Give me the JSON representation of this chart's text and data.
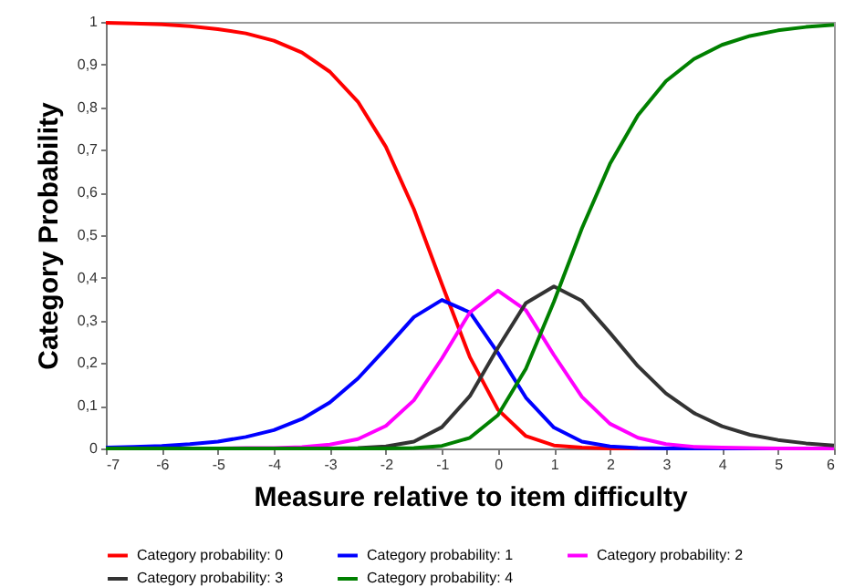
{
  "chart_data": {
    "type": "line",
    "xlabel": "Measure relative to item difficulty",
    "ylabel": "Category Probability",
    "x": [
      -7,
      -6.5,
      -6,
      -5.5,
      -5,
      -4.5,
      -4,
      -3.5,
      -3,
      -2.5,
      -2,
      -1.5,
      -1,
      -0.5,
      0,
      0.5,
      1,
      1.5,
      2,
      2.5,
      3,
      3.5,
      4,
      4.5,
      5,
      5.5,
      6
    ],
    "series": [
      {
        "name": "Category probability: 0",
        "color": "#ff0000",
        "values": [
          0.998,
          0.996,
          0.994,
          0.99,
          0.983,
          0.973,
          0.956,
          0.928,
          0.883,
          0.813,
          0.707,
          0.561,
          0.385,
          0.214,
          0.091,
          0.029,
          0.007,
          0.002,
          0,
          0,
          0,
          null,
          null,
          null,
          null,
          null,
          null
        ]
      },
      {
        "name": "Category probability: 1",
        "color": "#0000ff",
        "values": [
          0.002,
          0.004,
          0.006,
          0.01,
          0.016,
          0.027,
          0.043,
          0.069,
          0.108,
          0.164,
          0.235,
          0.308,
          0.348,
          0.319,
          0.224,
          0.119,
          0.049,
          0.016,
          0.005,
          0.001,
          0,
          0,
          0,
          0,
          0,
          null,
          null
        ]
      },
      {
        "name": "Category probability: 2",
        "color": "#ff00ff",
        "values": [
          null,
          null,
          null,
          0,
          0,
          0.001,
          0.001,
          0.003,
          0.009,
          0.022,
          0.053,
          0.113,
          0.211,
          0.319,
          0.37,
          0.324,
          0.219,
          0.121,
          0.058,
          0.025,
          0.01,
          0.004,
          0.002,
          0.001,
          0,
          0,
          0
        ]
      },
      {
        "name": "Category probability: 3",
        "color": "#333333",
        "values": [
          0,
          0,
          0,
          0,
          0,
          0,
          0,
          0,
          0,
          0.001,
          0.005,
          0.016,
          0.05,
          0.123,
          0.236,
          0.341,
          0.38,
          0.346,
          0.271,
          0.193,
          0.129,
          0.083,
          0.052,
          0.032,
          0.02,
          0.012,
          0.007
        ]
      },
      {
        "name": "Category probability: 4",
        "color": "#008000",
        "values": [
          0,
          0,
          0,
          0,
          0,
          0,
          0,
          0,
          0,
          0,
          0,
          0.001,
          0.006,
          0.025,
          0.078,
          0.187,
          0.344,
          0.516,
          0.667,
          0.781,
          0.861,
          0.913,
          0.946,
          0.967,
          0.98,
          0.988,
          0.993
        ]
      }
    ],
    "xlim": [
      -7,
      6
    ],
    "xticks": [
      -7,
      -6,
      -5,
      -4,
      -3,
      -2,
      -1,
      0,
      1,
      2,
      3,
      4,
      5,
      6
    ],
    "ylim": [
      0,
      1
    ],
    "yticks": [
      0,
      {
        "value": 0.1,
        "label": "0,1"
      },
      {
        "value": 0.2,
        "label": "0,2"
      },
      {
        "value": 0.3,
        "label": "0,3"
      },
      {
        "value": 0.4,
        "label": "0,4"
      },
      {
        "value": 0.5,
        "label": "0,5"
      },
      {
        "value": 0.6,
        "label": "0,6"
      },
      {
        "value": 0.7,
        "label": "0,7"
      },
      {
        "value": 0.8,
        "label": "0,8"
      },
      {
        "value": 0.9,
        "label": "0,9"
      },
      1
    ],
    "grid": false,
    "legend": "bottom",
    "marker": "none",
    "line_style": "solid"
  }
}
